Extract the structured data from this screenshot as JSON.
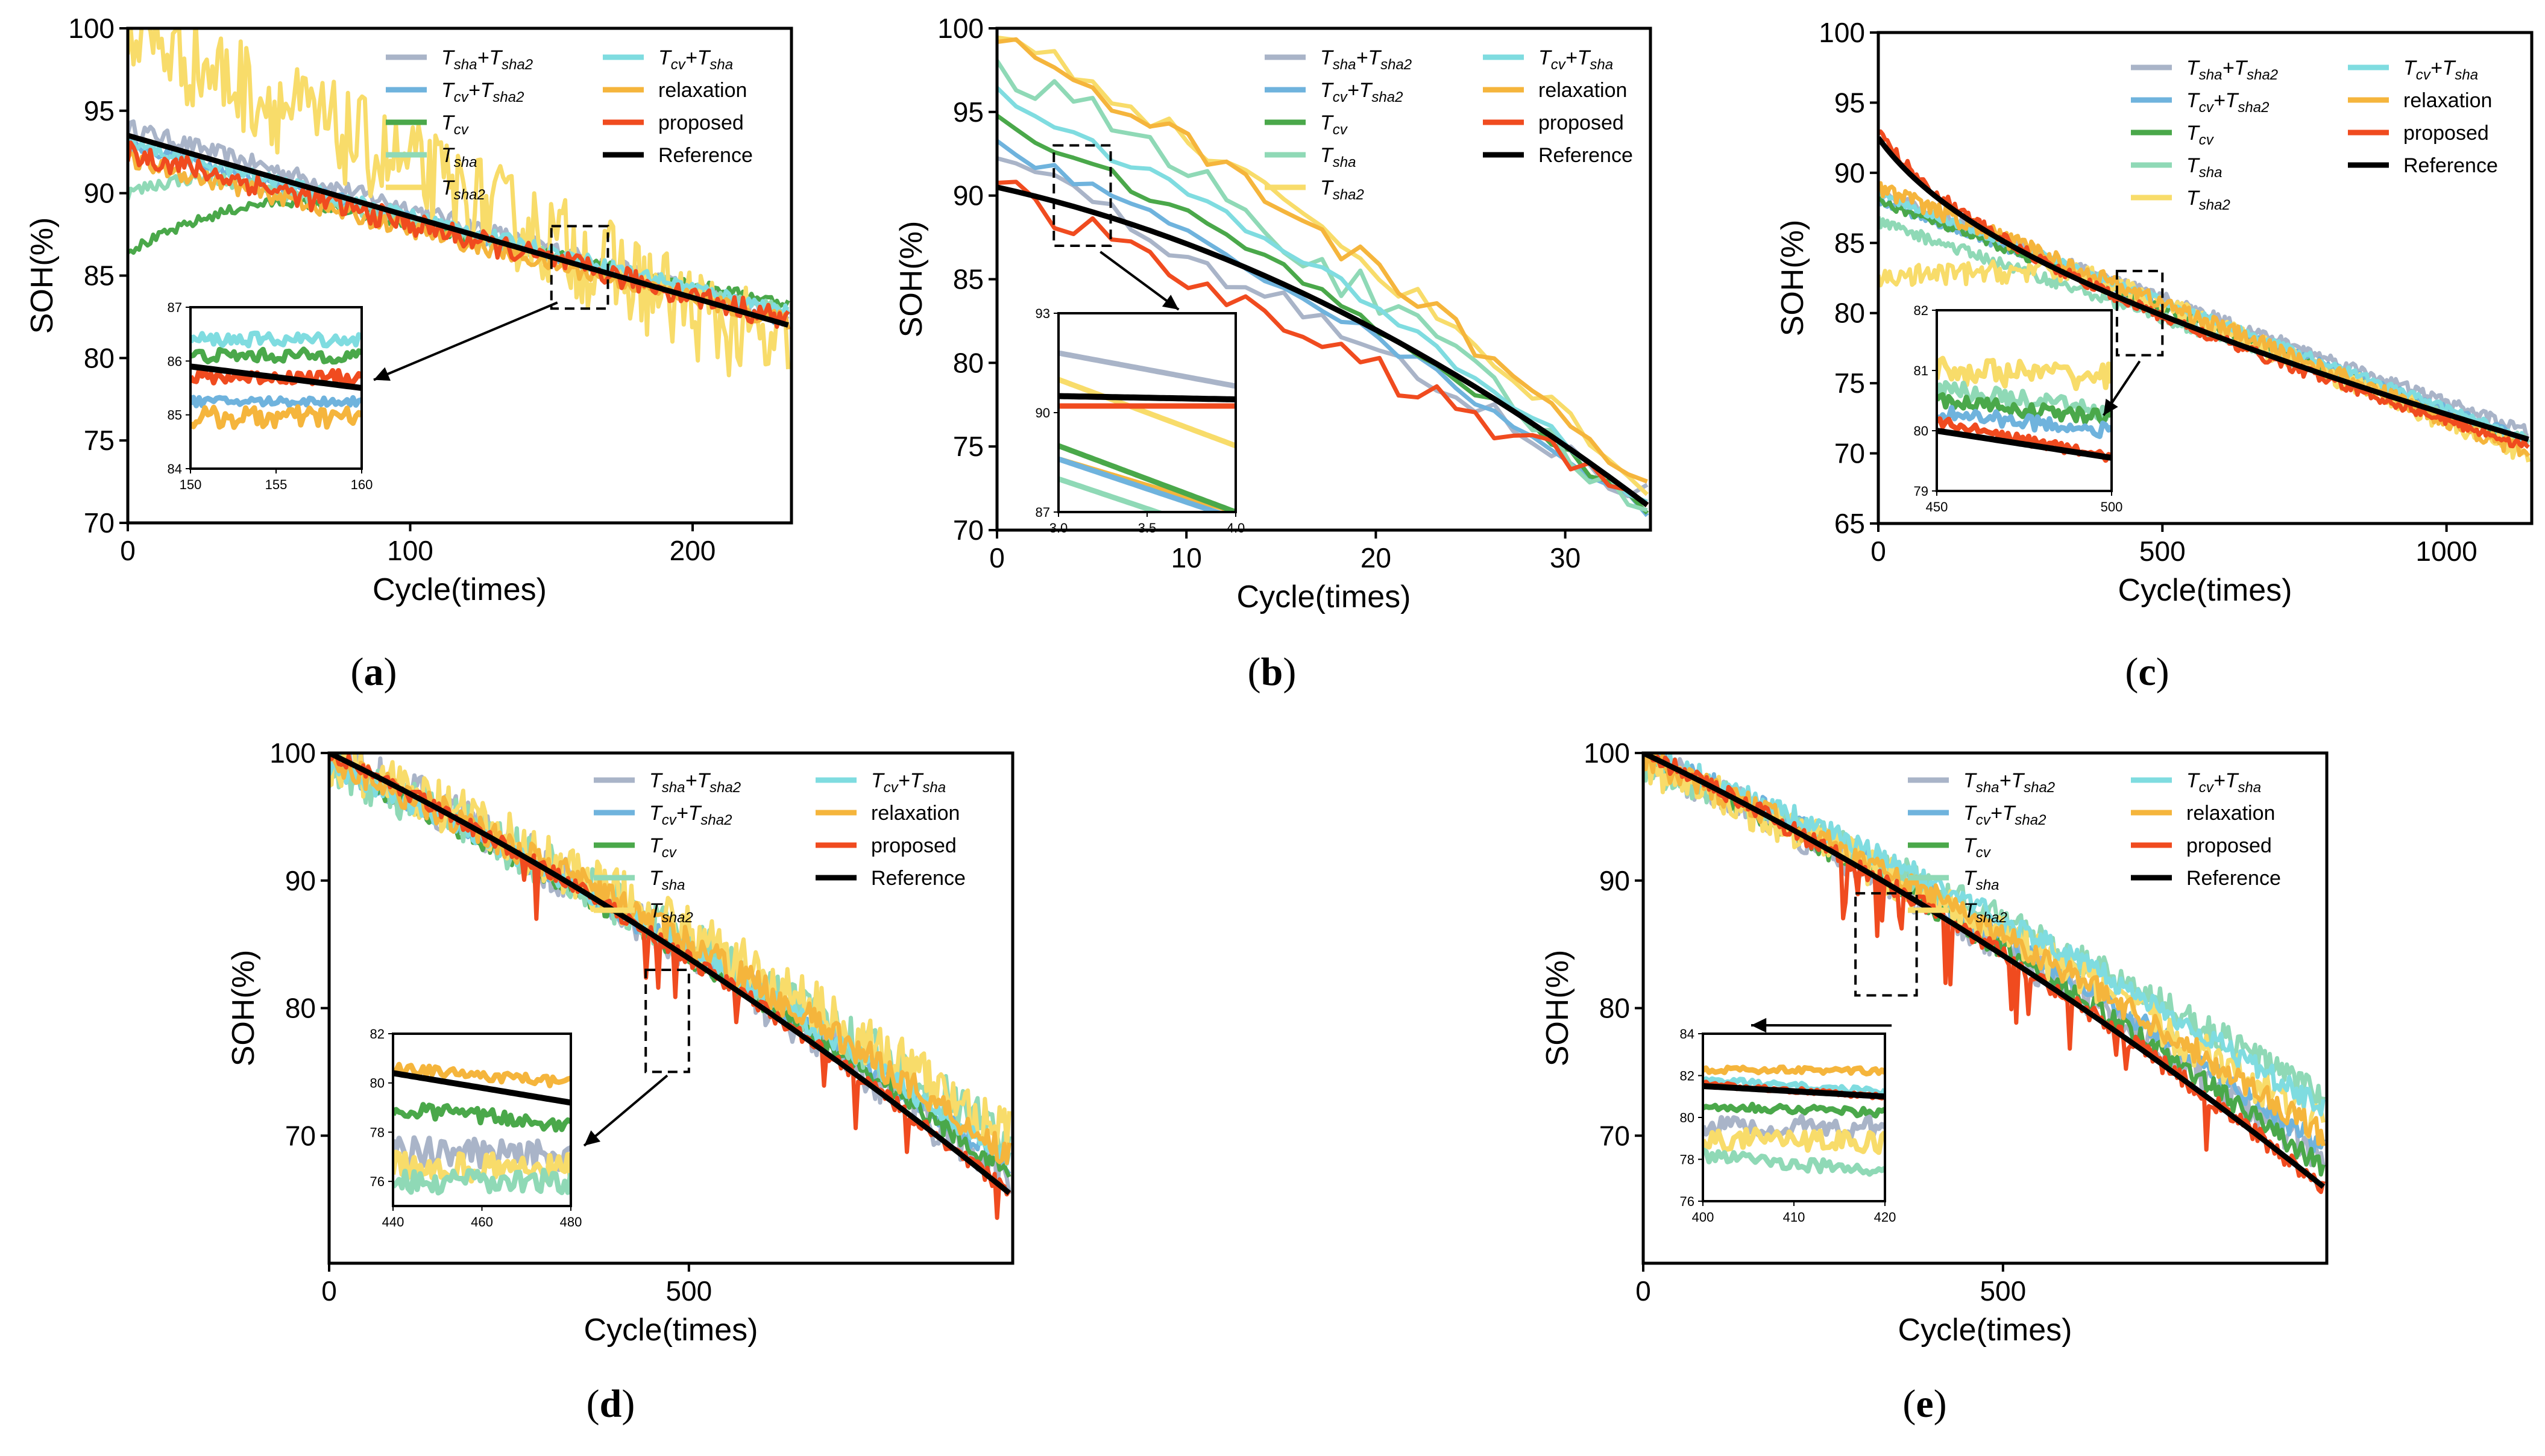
{
  "figure": {
    "series_styles": [
      {
        "key": "tsha_tsha2",
        "label": "Tsha+Tsha2",
        "base": "T",
        "sub": "sha",
        "plus": "+T",
        "sub2": "sha2",
        "color": "#a9b4c8"
      },
      {
        "key": "tcv_tsha2",
        "label": "Tcv+Tsha2",
        "base": "T",
        "sub": "cv",
        "plus": "+T",
        "sub2": "sha2",
        "color": "#6fb3dd"
      },
      {
        "key": "tcv",
        "label": "Tcv",
        "base": "T",
        "sub": "cv",
        "plus": "",
        "sub2": "",
        "color": "#4aa84a"
      },
      {
        "key": "tsha",
        "label": "Tsha",
        "base": "T",
        "sub": "sha",
        "plus": "",
        "sub2": "",
        "color": "#8fd9b6"
      },
      {
        "key": "tsha2",
        "label": "Tsha2",
        "base": "T",
        "sub": "sha2",
        "plus": "",
        "sub2": "",
        "color": "#f8dc6a"
      },
      {
        "key": "tcv_tsha",
        "label": "Tcv+Tsha",
        "base": "T",
        "sub": "cv",
        "plus": "+T",
        "sub2": "sha",
        "color": "#7fdce0"
      },
      {
        "key": "relaxation",
        "label": "relaxation",
        "base": "relaxation",
        "sub": "",
        "plus": "",
        "sub2": "",
        "color": "#f5b53c"
      },
      {
        "key": "proposed",
        "label": "proposed",
        "base": "proposed",
        "sub": "",
        "plus": "",
        "sub2": "",
        "color": "#f04b1f"
      },
      {
        "key": "reference",
        "label": "Reference",
        "base": "Reference",
        "sub": "",
        "plus": "",
        "sub2": "",
        "color": "#000000"
      }
    ]
  },
  "chart_data": [
    {
      "id": "a",
      "panel_label": "(a)",
      "type": "line",
      "xlabel": "Cycle(times)",
      "ylabel": "SOH(%)",
      "xlim": [
        0,
        235
      ],
      "ylim": [
        70,
        100
      ],
      "xticks": [
        0,
        100,
        200
      ],
      "yticks": [
        70,
        75,
        80,
        85,
        90,
        95,
        100
      ],
      "n_points": 235,
      "noise_scale": 1.0,
      "series": [
        {
          "key": "tsha_tsha2",
          "start": 94,
          "end": 82.5,
          "shape": "linear",
          "noise": 0.5
        },
        {
          "key": "tcv_tsha2",
          "start": 93,
          "end": 82.3,
          "shape": "linear",
          "noise": 0.4
        },
        {
          "key": "tcv",
          "start": 86.5,
          "end": 83.3,
          "shape": "rise_then_fall",
          "peak_x": 60,
          "peak_y": 89.5,
          "noise": 0.3
        },
        {
          "key": "tsha",
          "start": 90,
          "end": 82.8,
          "shape": "rise_then_fall",
          "peak_x": 30,
          "peak_y": 91.0,
          "noise": 0.4
        },
        {
          "key": "tsha2",
          "start": 100,
          "end": 80.0,
          "shape": "linear",
          "noise": 3.0
        },
        {
          "key": "tcv_tsha",
          "start": 93,
          "end": 82.8,
          "shape": "linear",
          "noise": 0.4
        },
        {
          "key": "relaxation",
          "start": 92,
          "end": 82.2,
          "shape": "linear",
          "noise": 0.5
        },
        {
          "key": "proposed",
          "start": 92.5,
          "end": 82.3,
          "shape": "linear",
          "noise": 0.7
        },
        {
          "key": "reference",
          "start": 93.5,
          "end": 82.0,
          "shape": "linear",
          "noise": 0
        }
      ],
      "zoom_box": {
        "x": [
          150,
          170
        ],
        "y": [
          83,
          88
        ]
      },
      "inset": {
        "xlim": [
          150,
          160
        ],
        "ylim": [
          84,
          87
        ],
        "xticks": [
          150,
          155,
          160
        ],
        "yticks": [
          84,
          85,
          86,
          87
        ],
        "series": [
          {
            "key": "tcv_tsha",
            "level": 86.4,
            "noise": 0.12
          },
          {
            "key": "tcv",
            "level": 86.1,
            "noise": 0.12
          },
          {
            "key": "proposed",
            "level": 85.7,
            "noise": 0.12
          },
          {
            "key": "reference",
            "level": 85.9,
            "end_level": 85.5,
            "noise": 0
          },
          {
            "key": "tcv_tsha2",
            "level": 85.25,
            "noise": 0.08
          },
          {
            "key": "relaxation",
            "level": 84.95,
            "noise": 0.2
          }
        ]
      }
    },
    {
      "id": "b",
      "panel_label": "(b)",
      "type": "line",
      "xlabel": "Cycle(times)",
      "ylabel": "SOH(%)",
      "xlim": [
        0,
        34.5
      ],
      "ylim": [
        70,
        100
      ],
      "xticks": [
        0,
        10,
        20,
        30
      ],
      "yticks": [
        70,
        75,
        80,
        85,
        90,
        95,
        100
      ],
      "n_points": 35,
      "noise_scale": 1.0,
      "series": [
        {
          "key": "tsha_tsha2",
          "start": 92.5,
          "end": 72.0,
          "shape": "linear",
          "noise": 0.8
        },
        {
          "key": "tcv_tsha2",
          "start": 93.0,
          "end": 71.0,
          "shape": "concave",
          "noise": 0.4
        },
        {
          "key": "tcv",
          "start": 94.5,
          "end": 71.0,
          "shape": "concave",
          "noise": 0.4
        },
        {
          "key": "tsha",
          "start": 98.0,
          "end": 70.5,
          "shape": "concave",
          "noise": 1.2
        },
        {
          "key": "tsha2",
          "start": 100.0,
          "end": 72.5,
          "shape": "concave",
          "noise": 0.7
        },
        {
          "key": "tcv_tsha",
          "start": 96.0,
          "end": 71.5,
          "shape": "concave",
          "noise": 0.5
        },
        {
          "key": "relaxation",
          "start": 99.5,
          "end": 72.7,
          "shape": "concave",
          "noise": 0.8
        },
        {
          "key": "proposed",
          "start": 90.5,
          "end": 71.8,
          "shape": "linear",
          "noise": 0.9
        },
        {
          "key": "reference",
          "start": 90.5,
          "end": 71.5,
          "shape": "convex",
          "noise": 0
        }
      ],
      "zoom_box": {
        "x": [
          3,
          6
        ],
        "y": [
          87,
          93
        ]
      },
      "inset": {
        "xlim": [
          3.0,
          4.0
        ],
        "ylim": [
          87,
          93
        ],
        "xticks": [
          3.0,
          3.5,
          4.0
        ],
        "yticks": [
          87,
          90,
          93
        ],
        "series": [
          {
            "key": "tsha_tsha2",
            "level": 91.8,
            "end_level": 90.8,
            "noise": 0
          },
          {
            "key": "tsha2",
            "level": 91.0,
            "end_level": 89.0,
            "noise": 0
          },
          {
            "key": "reference",
            "level": 90.5,
            "end_level": 90.4,
            "noise": 0
          },
          {
            "key": "proposed",
            "level": 90.2,
            "end_level": 90.2,
            "noise": 0
          },
          {
            "key": "relaxation",
            "level": 88.6,
            "end_level": 87.0,
            "noise": 0
          },
          {
            "key": "tcv",
            "level": 89.0,
            "end_level": 87.0,
            "noise": 0
          },
          {
            "key": "tcv_tsha2",
            "level": 88.6,
            "end_level": 86.8,
            "noise": 0
          },
          {
            "key": "tsha",
            "level": 88.0,
            "end_level": 86.2,
            "noise": 0
          }
        ]
      }
    },
    {
      "id": "c",
      "panel_label": "(c)",
      "type": "line",
      "xlabel": "Cycle(times)",
      "ylabel": "SOH(%)",
      "xlim": [
        0,
        1150
      ],
      "ylim": [
        65,
        100
      ],
      "xticks": [
        0,
        500,
        1000
      ],
      "yticks": [
        65,
        70,
        75,
        80,
        85,
        90,
        95,
        100
      ],
      "n_points": 290,
      "noise_scale": 1.0,
      "series": [
        {
          "key": "tsha_tsha2",
          "start": 88.5,
          "end": 71.5,
          "shape": "linear",
          "noise": 0.4
        },
        {
          "key": "tcv_tsha2",
          "start": 88.0,
          "end": 71.0,
          "shape": "linear",
          "noise": 0.3
        },
        {
          "key": "tcv",
          "start": 88.0,
          "end": 70.5,
          "shape": "linear",
          "noise": 0.3
        },
        {
          "key": "tsha",
          "start": 86.5,
          "end": 70.8,
          "shape": "linear",
          "noise": 0.4
        },
        {
          "key": "tsha2",
          "start": 82.5,
          "end": 70.0,
          "shape": "rise_then_fall",
          "peak_x": 350,
          "peak_y": 83.0,
          "noise": 0.8
        },
        {
          "key": "tcv_tsha",
          "start": 88.5,
          "end": 71.0,
          "shape": "linear",
          "noise": 0.3
        },
        {
          "key": "relaxation",
          "start": 89.0,
          "end": 70.0,
          "shape": "linear",
          "noise": 0.6
        },
        {
          "key": "proposed",
          "start": 93.0,
          "end": 70.5,
          "shape": "log",
          "noise": 0.4
        },
        {
          "key": "reference",
          "start": 92.5,
          "end": 71.0,
          "shape": "log",
          "noise": 0
        }
      ],
      "zoom_box": {
        "x": [
          420,
          500
        ],
        "y": [
          77,
          83
        ]
      },
      "inset": {
        "xlim": [
          450,
          500
        ],
        "ylim": [
          79,
          82
        ],
        "xticks": [
          450,
          500
        ],
        "yticks": [
          79,
          80,
          81,
          82
        ],
        "series": [
          {
            "key": "tsha2",
            "level": 81.0,
            "end_level": 80.9,
            "noise": 0.22
          },
          {
            "key": "tsha",
            "level": 80.7,
            "end_level": 80.3,
            "noise": 0.15
          },
          {
            "key": "tcv",
            "level": 80.5,
            "end_level": 80.2,
            "noise": 0.12
          },
          {
            "key": "tcv_tsha2",
            "level": 80.3,
            "end_level": 80.0,
            "noise": 0.12
          },
          {
            "key": "proposed",
            "level": 80.15,
            "end_level": 79.55,
            "noise": 0.08
          },
          {
            "key": "reference",
            "level": 80.0,
            "end_level": 79.55,
            "noise": 0
          }
        ]
      }
    },
    {
      "id": "d",
      "panel_label": "(d)",
      "type": "line",
      "xlabel": "Cycle(times)",
      "ylabel": "SOH(%)",
      "xlim": [
        0,
        950
      ],
      "ylim": [
        60,
        100
      ],
      "xticks": [
        0,
        500
      ],
      "yticks": [
        70,
        80,
        90,
        100
      ],
      "n_points": 280,
      "noise_scale": 1.0,
      "series": [
        {
          "key": "tsha_tsha2",
          "start": 100.0,
          "end": 66.5,
          "shape": "concave",
          "noise": 1.8
        },
        {
          "key": "tcv_tsha2",
          "start": 99.0,
          "end": 67.5,
          "shape": "concave",
          "noise": 0.8
        },
        {
          "key": "tcv",
          "start": 99.0,
          "end": 67.0,
          "shape": "concave",
          "noise": 0.8
        },
        {
          "key": "tsha",
          "start": 99.0,
          "end": 69.5,
          "shape": "concave",
          "noise": 1.8
        },
        {
          "key": "tsha2",
          "start": 99.5,
          "end": 70.0,
          "shape": "concave",
          "noise": 2.2
        },
        {
          "key": "tcv_tsha",
          "start": 99.0,
          "end": 68.0,
          "shape": "concave",
          "noise": 0.8
        },
        {
          "key": "relaxation",
          "start": 99.5,
          "end": 68.5,
          "shape": "concave",
          "noise": 1.2
        },
        {
          "key": "proposed",
          "start": 100.0,
          "end": 65.5,
          "shape": "concave",
          "noise": 0.6
        },
        {
          "key": "reference",
          "start": 100.0,
          "end": 65.5,
          "shape": "concave",
          "noise": 0
        }
      ],
      "zoom_box": {
        "x": [
          440,
          500
        ],
        "y": [
          75,
          83
        ]
      },
      "inset": {
        "xlim": [
          440,
          480
        ],
        "ylim": [
          75,
          82
        ],
        "xticks": [
          440,
          460,
          480
        ],
        "yticks": [
          76,
          78,
          80,
          82
        ],
        "series": [
          {
            "key": "relaxation",
            "level": 80.6,
            "end_level": 80.0,
            "noise": 0.2
          },
          {
            "key": "reference",
            "level": 80.4,
            "end_level": 79.2,
            "noise": 0
          },
          {
            "key": "tcv",
            "level": 79.0,
            "end_level": 78.3,
            "noise": 0.3
          },
          {
            "key": "tsha_tsha2",
            "level": 77.2,
            "end_level": 77.0,
            "noise": 0.6
          },
          {
            "key": "tsha2",
            "level": 76.6,
            "end_level": 76.5,
            "noise": 0.6
          },
          {
            "key": "tsha",
            "level": 75.9,
            "end_level": 76.0,
            "noise": 0.5
          }
        ]
      }
    },
    {
      "id": "e",
      "panel_label": "(e)",
      "type": "line",
      "xlabel": "Cycle(times)",
      "ylabel": "SOH(%)",
      "xlim": [
        0,
        950
      ],
      "ylim": [
        60,
        100
      ],
      "xticks": [
        0,
        500
      ],
      "yticks": [
        70,
        80,
        90,
        100
      ],
      "n_points": 280,
      "noise_scale": 1.0,
      "series": [
        {
          "key": "tsha_tsha2",
          "start": 99.5,
          "end": 68.0,
          "shape": "concave",
          "noise": 1.4
        },
        {
          "key": "tcv_tsha2",
          "start": 100.0,
          "end": 69.0,
          "shape": "concave",
          "noise": 0.9
        },
        {
          "key": "tcv",
          "start": 99.5,
          "end": 67.5,
          "shape": "concave",
          "noise": 0.8
        },
        {
          "key": "tsha",
          "start": 99.0,
          "end": 73.0,
          "shape": "concave",
          "noise": 1.2
        },
        {
          "key": "tsha2",
          "start": 99.0,
          "end": 70.5,
          "shape": "concave",
          "noise": 1.6
        },
        {
          "key": "tcv_tsha",
          "start": 100.0,
          "end": 72.0,
          "shape": "concave",
          "noise": 0.9
        },
        {
          "key": "relaxation",
          "start": 99.5,
          "end": 70.0,
          "shape": "concave",
          "noise": 1.0
        },
        {
          "key": "proposed",
          "start": 100.0,
          "end": 66.0,
          "shape": "concave",
          "noise": 0.7
        },
        {
          "key": "reference",
          "start": 100.0,
          "end": 66.0,
          "shape": "concave",
          "noise": 0
        }
      ],
      "zoom_box": {
        "x": [
          295,
          380
        ],
        "y": [
          81,
          89
        ]
      },
      "inset": {
        "xlim": [
          400,
          420
        ],
        "ylim": [
          76,
          84
        ],
        "xticks": [
          400,
          410,
          420
        ],
        "yticks": [
          76,
          78,
          80,
          82,
          84
        ],
        "series": [
          {
            "key": "relaxation",
            "level": 82.3,
            "end_level": 82.2,
            "noise": 0.15
          },
          {
            "key": "tcv_tsha",
            "level": 81.8,
            "end_level": 81.2,
            "noise": 0.15
          },
          {
            "key": "proposed",
            "level": 81.6,
            "end_level": 81.0,
            "noise": 0.1
          },
          {
            "key": "reference",
            "level": 81.5,
            "end_level": 81.0,
            "noise": 0
          },
          {
            "key": "tcv",
            "level": 80.6,
            "end_level": 80.2,
            "noise": 0.2
          },
          {
            "key": "tsha_tsha2",
            "level": 79.6,
            "end_level": 79.5,
            "noise": 0.5
          },
          {
            "key": "tsha2",
            "level": 79.0,
            "end_level": 78.8,
            "noise": 0.5
          },
          {
            "key": "tsha",
            "level": 78.2,
            "end_level": 77.4,
            "noise": 0.3
          }
        ]
      }
    }
  ]
}
